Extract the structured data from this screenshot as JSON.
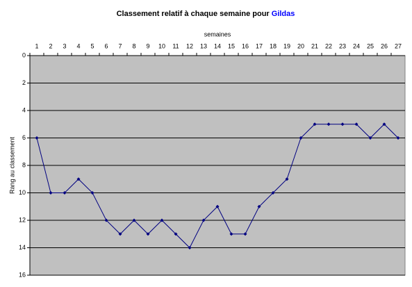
{
  "chart_data": {
    "type": "line",
    "title": [
      "Classement relatif à chaque semaine pour",
      "Gildas"
    ],
    "x_label": "semaines",
    "y_label": "Rang au classement",
    "categories": [
      1,
      2,
      3,
      4,
      5,
      6,
      7,
      8,
      9,
      10,
      11,
      12,
      13,
      14,
      15,
      16,
      17,
      18,
      19,
      20,
      21,
      22,
      23,
      24,
      25,
      26,
      27
    ],
    "series": [
      {
        "name": "Gildas",
        "color": "#000080",
        "values": [
          6,
          10,
          10,
          9,
          10,
          12,
          13,
          12,
          13,
          12,
          13,
          14,
          12,
          11,
          13,
          13,
          11,
          10,
          9,
          6,
          5,
          5,
          5,
          5,
          6,
          5,
          6
        ]
      }
    ],
    "ylim": [
      0,
      16
    ],
    "yticks": [
      0,
      2,
      4,
      6,
      8,
      10,
      12,
      14,
      16
    ],
    "y_reversed": true,
    "grid": true,
    "x_axis_position": "top",
    "plot_color": "#c0c0c0"
  }
}
